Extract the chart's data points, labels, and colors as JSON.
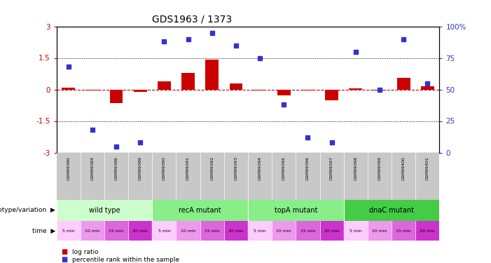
{
  "title": "GDS1963 / 1373",
  "samples": [
    "GSM99380",
    "GSM99384",
    "GSM99386",
    "GSM99389",
    "GSM99390",
    "GSM99391",
    "GSM99392",
    "GSM99393",
    "GSM99394",
    "GSM99395",
    "GSM99396",
    "GSM99397",
    "GSM99398",
    "GSM99399",
    "GSM99400",
    "GSM99401"
  ],
  "log_ratio": [
    0.1,
    -0.05,
    -0.65,
    -0.12,
    0.38,
    0.78,
    1.42,
    0.28,
    -0.04,
    -0.28,
    -0.04,
    -0.5,
    0.04,
    -0.04,
    0.55,
    0.15
  ],
  "percentile_rank": [
    68,
    18,
    5,
    8,
    88,
    90,
    95,
    85,
    75,
    38,
    12,
    8,
    80,
    50,
    90,
    55
  ],
  "ylim_left": [
    -3,
    3
  ],
  "ylim_right": [
    0,
    100
  ],
  "bar_color": "#cc0000",
  "scatter_color": "#3333cc",
  "groups": [
    {
      "label": "wild type",
      "start": 0,
      "end": 4,
      "color": "#ccffcc"
    },
    {
      "label": "recA mutant",
      "start": 4,
      "end": 8,
      "color": "#88ee88"
    },
    {
      "label": "topA mutant",
      "start": 8,
      "end": 12,
      "color": "#88ee88"
    },
    {
      "label": "dnaC mutant",
      "start": 12,
      "end": 16,
      "color": "#44cc44"
    }
  ],
  "time_labels": [
    "5 min",
    "10 min",
    "15 min",
    "20 min",
    "5 min",
    "10 min",
    "15 min",
    "20 min",
    "5 min",
    "10 min",
    "15 min",
    "20 min",
    "5 min",
    "10 min",
    "15 min",
    "20 min"
  ],
  "time_color_cycle": [
    "#ffccff",
    "#ee99ee",
    "#dd66dd",
    "#cc33cc"
  ]
}
